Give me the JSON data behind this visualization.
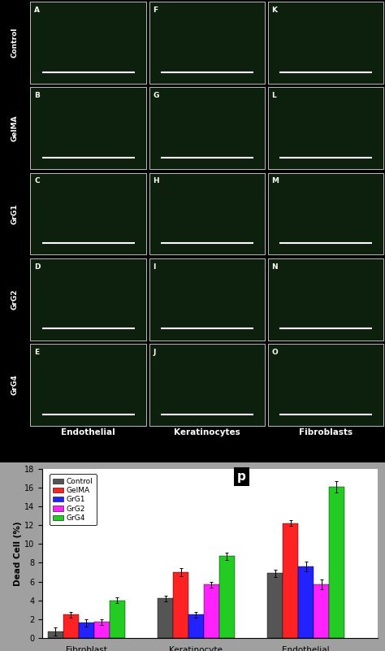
{
  "panel_labels_top": [
    "Endothelial",
    "Keratinocytes",
    "Fibroblasts"
  ],
  "panel_labels_side": [
    "Control",
    "GelMA",
    "GrG1",
    "GrG2",
    "GrG4"
  ],
  "panel_letters_by_col": [
    [
      "A",
      "B",
      "C",
      "D",
      "E"
    ],
    [
      "F",
      "G",
      "H",
      "I",
      "J"
    ],
    [
      "K",
      "L",
      "M",
      "N",
      "O"
    ]
  ],
  "bar_groups": [
    "Fibroblast",
    "Keratinocyte",
    "Endothelial"
  ],
  "bar_series": [
    "Control",
    "GelMA",
    "GrG1",
    "GrG2",
    "GrG4"
  ],
  "bar_colors": [
    "#555555",
    "#ff2222",
    "#2222ff",
    "#ff22ff",
    "#22cc22"
  ],
  "bar_values": {
    "Fibroblast": [
      0.7,
      2.5,
      1.6,
      1.7,
      4.0
    ],
    "Keratinocyte": [
      4.2,
      7.0,
      2.5,
      5.7,
      8.7
    ],
    "Endothelial": [
      6.9,
      12.2,
      7.6,
      5.7,
      16.1
    ]
  },
  "bar_errors": {
    "Fibroblast": [
      0.4,
      0.3,
      0.4,
      0.3,
      0.3
    ],
    "Keratinocyte": [
      0.3,
      0.4,
      0.3,
      0.3,
      0.4
    ],
    "Endothelial": [
      0.4,
      0.3,
      0.5,
      0.5,
      0.6
    ]
  },
  "ylabel": "Dead Cell (%)",
  "ylim": [
    0,
    18
  ],
  "yticks": [
    0,
    2,
    4,
    6,
    8,
    10,
    12,
    14,
    16,
    18
  ],
  "bar_width": 0.14,
  "figure_bg": "#a0a0a0",
  "image_bg": "#000000",
  "panel_bg": "#0d200d",
  "side_label_bg": "#000000",
  "top_label_bg": "#000000"
}
